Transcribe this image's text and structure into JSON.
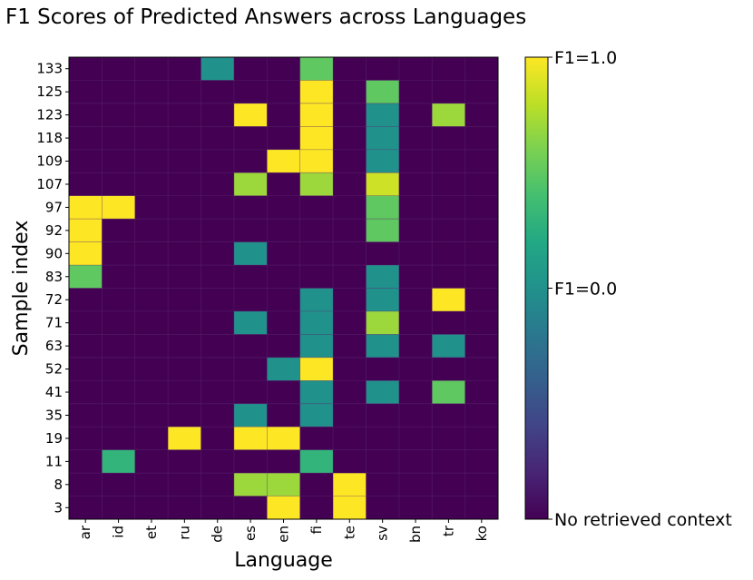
{
  "chart_data": {
    "type": "heatmap",
    "title": "F1 Scores of Predicted Answers across Languages",
    "xlabel": "Language",
    "ylabel": "Sample index",
    "x_categories": [
      "ar",
      "id",
      "et",
      "ru",
      "de",
      "es",
      "en",
      "fi",
      "te",
      "sv",
      "bn",
      "tr",
      "ko"
    ],
    "y_categories": [
      "133",
      "125",
      "123",
      "118",
      "109",
      "107",
      "97",
      "92",
      "90",
      "83",
      "72",
      "71",
      "63",
      "52",
      "41",
      "35",
      "19",
      "11",
      "8",
      "3"
    ],
    "colormap": "viridis",
    "vmin": -1.0,
    "vmax": 1.0,
    "colorbar_ticks": [
      {
        "value": 1.0,
        "label": "F1=1.0"
      },
      {
        "value": 0.0,
        "label": "F1=0.0"
      },
      {
        "value": -1.0,
        "label": "No retrieved context"
      }
    ],
    "values": [
      [
        -1,
        -1,
        -1,
        -1,
        0,
        -1,
        -1,
        0.5,
        -1,
        -1,
        -1,
        -1,
        -1
      ],
      [
        -1,
        -1,
        -1,
        -1,
        -1,
        -1,
        -1,
        1,
        -1,
        0.5,
        -1,
        -1,
        -1
      ],
      [
        -1,
        -1,
        -1,
        -1,
        -1,
        1,
        -1,
        1,
        -1,
        0,
        -1,
        0.7,
        -1
      ],
      [
        -1,
        -1,
        -1,
        -1,
        -1,
        -1,
        -1,
        1,
        -1,
        0,
        -1,
        -1,
        -1
      ],
      [
        -1,
        -1,
        -1,
        -1,
        -1,
        -1,
        1,
        1,
        -1,
        0,
        -1,
        -1,
        -1
      ],
      [
        -1,
        -1,
        -1,
        -1,
        -1,
        0.7,
        -1,
        0.7,
        -1,
        0.85,
        -1,
        -1,
        -1
      ],
      [
        1,
        1,
        -1,
        -1,
        -1,
        -1,
        -1,
        -1,
        -1,
        0.5,
        -1,
        -1,
        -1
      ],
      [
        1,
        -1,
        -1,
        -1,
        -1,
        -1,
        -1,
        -1,
        -1,
        0.5,
        -1,
        -1,
        -1
      ],
      [
        1,
        -1,
        -1,
        -1,
        -1,
        0,
        -1,
        -1,
        -1,
        -1,
        -1,
        -1,
        -1
      ],
      [
        0.5,
        -1,
        -1,
        -1,
        -1,
        -1,
        -1,
        -1,
        -1,
        0,
        -1,
        -1,
        -1
      ],
      [
        -1,
        -1,
        -1,
        -1,
        -1,
        -1,
        -1,
        0,
        -1,
        0,
        -1,
        1,
        -1
      ],
      [
        -1,
        -1,
        -1,
        -1,
        -1,
        0,
        -1,
        0,
        -1,
        0.7,
        -1,
        -1,
        -1
      ],
      [
        -1,
        -1,
        -1,
        -1,
        -1,
        -1,
        -1,
        0,
        -1,
        0,
        -1,
        0,
        -1
      ],
      [
        -1,
        -1,
        -1,
        -1,
        -1,
        -1,
        0,
        1,
        -1,
        -1,
        -1,
        -1,
        -1
      ],
      [
        -1,
        -1,
        -1,
        -1,
        -1,
        -1,
        -1,
        0,
        -1,
        0,
        -1,
        0.5,
        -1
      ],
      [
        -1,
        -1,
        -1,
        -1,
        -1,
        0,
        -1,
        0,
        -1,
        -1,
        -1,
        -1,
        -1
      ],
      [
        -1,
        -1,
        -1,
        1,
        -1,
        1,
        1,
        -1,
        -1,
        -1,
        -1,
        -1,
        -1
      ],
      [
        -1,
        0.3,
        -1,
        -1,
        -1,
        -1,
        -1,
        0.3,
        -1,
        -1,
        -1,
        -1,
        -1
      ],
      [
        -1,
        -1,
        -1,
        -1,
        -1,
        0.7,
        0.7,
        -1,
        1,
        -1,
        -1,
        -1,
        -1
      ],
      [
        -1,
        -1,
        -1,
        -1,
        -1,
        -1,
        1,
        -1,
        1,
        -1,
        -1,
        -1,
        -1
      ]
    ]
  }
}
